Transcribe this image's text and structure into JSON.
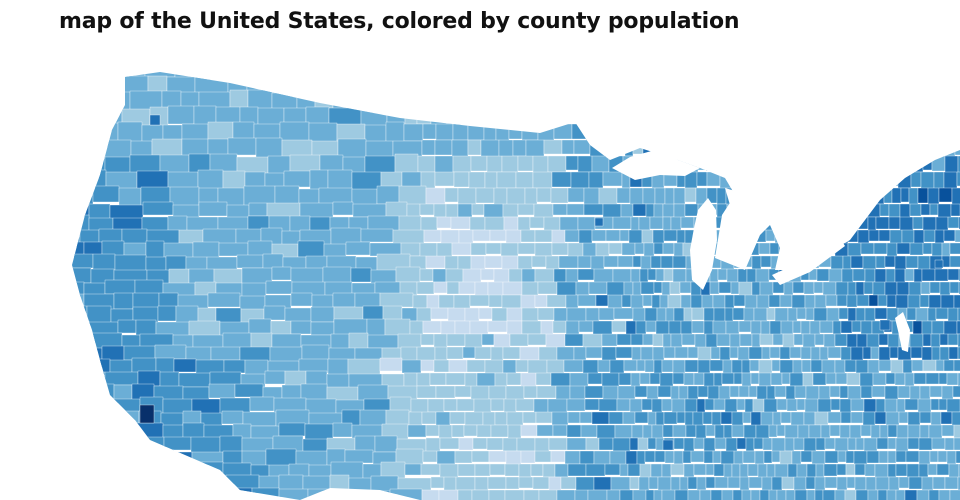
{
  "title": "map of the United States, colored by county population",
  "colors": {
    "background": "#ffffff",
    "water": "#ffffff",
    "border": "#ffffff",
    "scale": [
      "#c6dbef",
      "#9ecae1",
      "#6baed6",
      "#4292c6",
      "#2171b5",
      "#08519c",
      "#08306b"
    ]
  },
  "map": {
    "type": "choropleth",
    "region": "United States",
    "unit": "county",
    "variable": "population",
    "color_scale": "blues"
  }
}
